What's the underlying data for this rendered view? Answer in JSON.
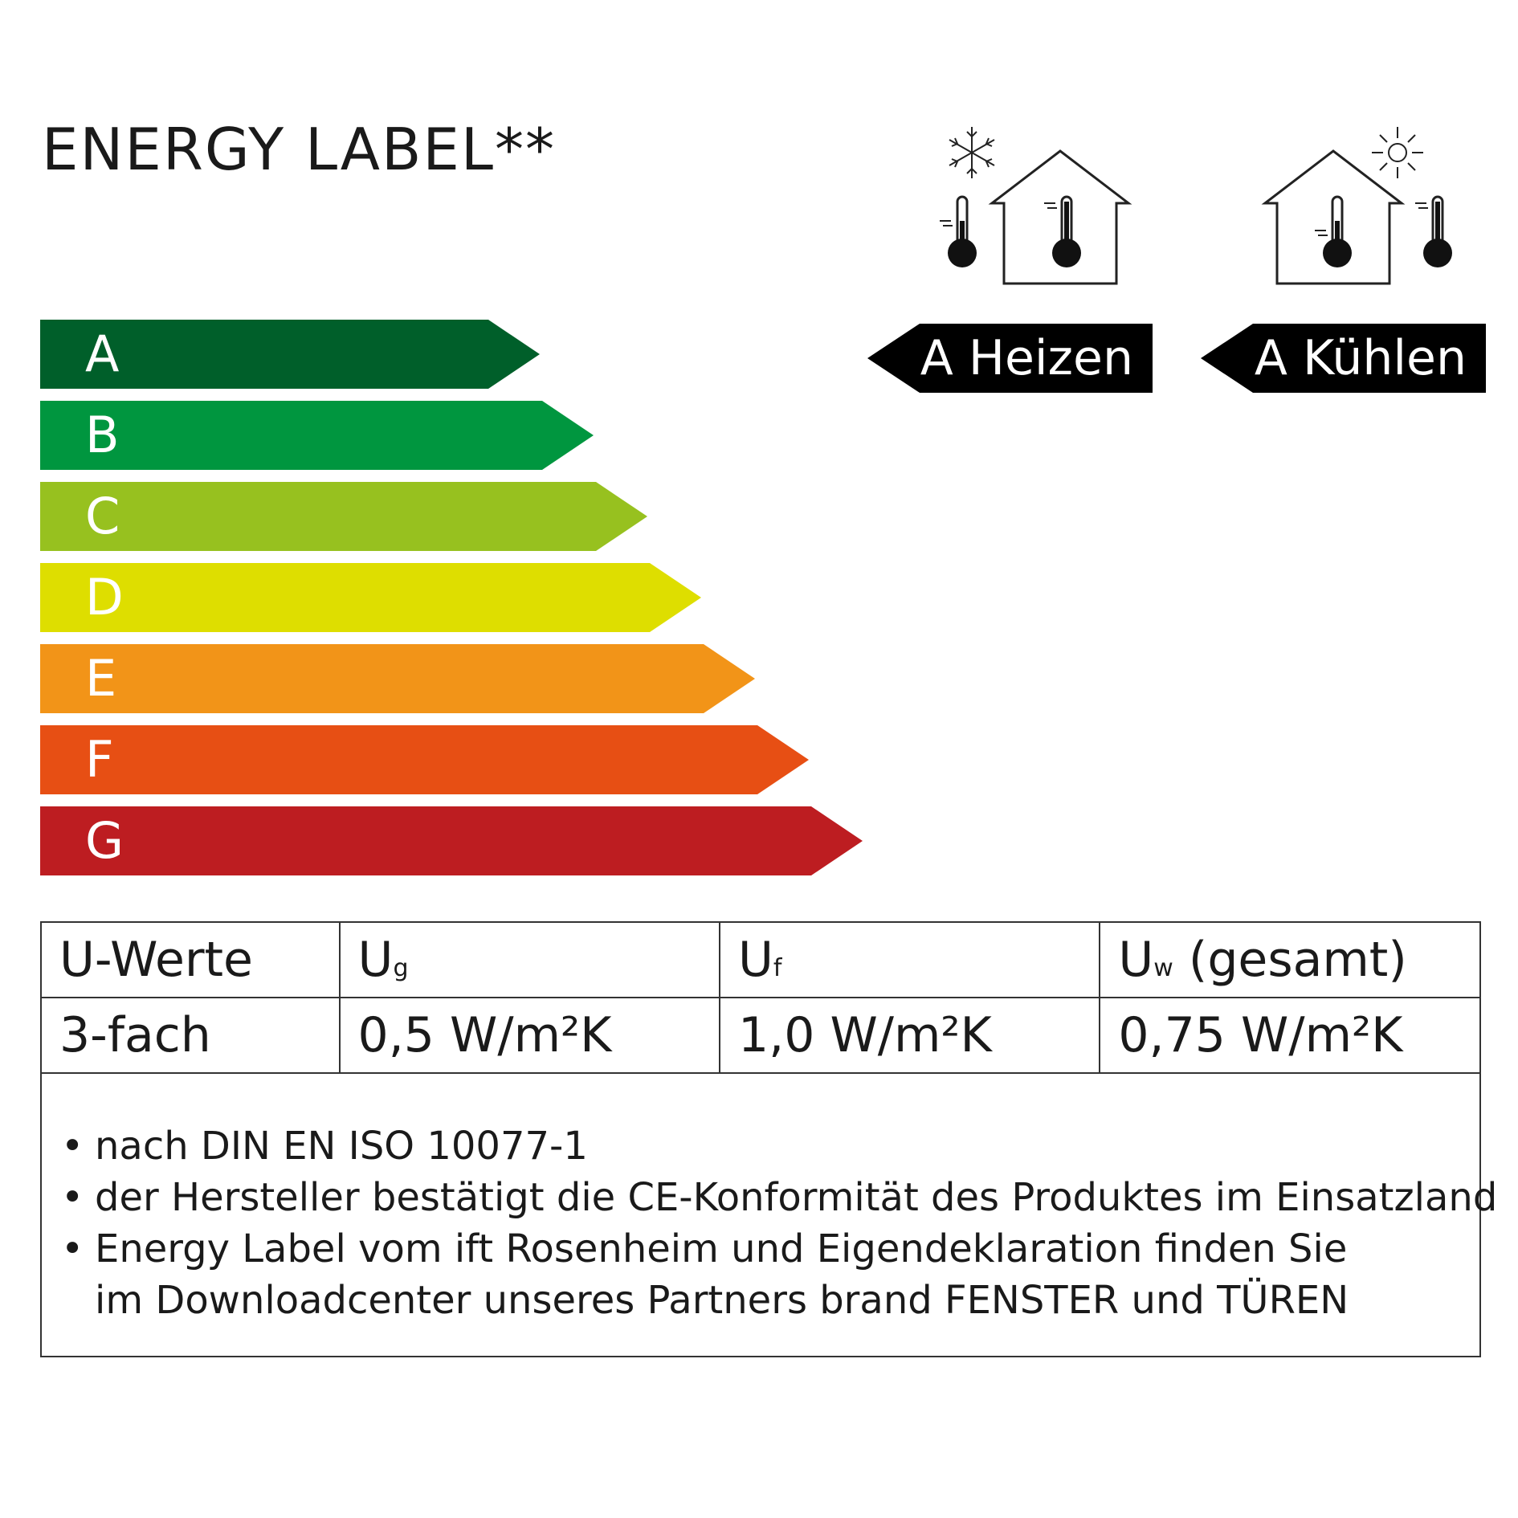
{
  "title": "ENERGY LABEL**",
  "classes": [
    {
      "letter": "A",
      "color": "#005f2a"
    },
    {
      "letter": "B",
      "color": "#00963f"
    },
    {
      "letter": "C",
      "color": "#97c11f"
    },
    {
      "letter": "D",
      "color": "#dede00"
    },
    {
      "letter": "E",
      "color": "#f29418"
    },
    {
      "letter": "F",
      "color": "#e74f14"
    },
    {
      "letter": "G",
      "color": "#bd1d21"
    }
  ],
  "ratings": {
    "heating": {
      "label": "A Heizen",
      "icon": "house-heating-snowflake-icon"
    },
    "cooling": {
      "label": "A Kühlen",
      "icon": "house-cooling-sun-icon"
    }
  },
  "u_values": {
    "header": {
      "label": "U-Werte",
      "ug": "U",
      "ug_sub": "g",
      "uf": "U",
      "uf_sub": "f",
      "uw": "U",
      "uw_sub": "w",
      "uw_suffix": " (gesamt)"
    },
    "row": {
      "label": "3-fach",
      "ug": "0,5 W/m²K",
      "uf": "1,0 W/m²K",
      "uw": "0,75 W/m²K"
    }
  },
  "notes": [
    "nach DIN EN ISO 10077-1",
    "der Hersteller bestätigt die CE-Konformität des Produktes im Einsatzland",
    "Energy Label vom ift Rosenheim und Eigendeklaration finden Sie",
    "im Downloadcenter unseres Partners brand FENSTER und TÜREN"
  ]
}
